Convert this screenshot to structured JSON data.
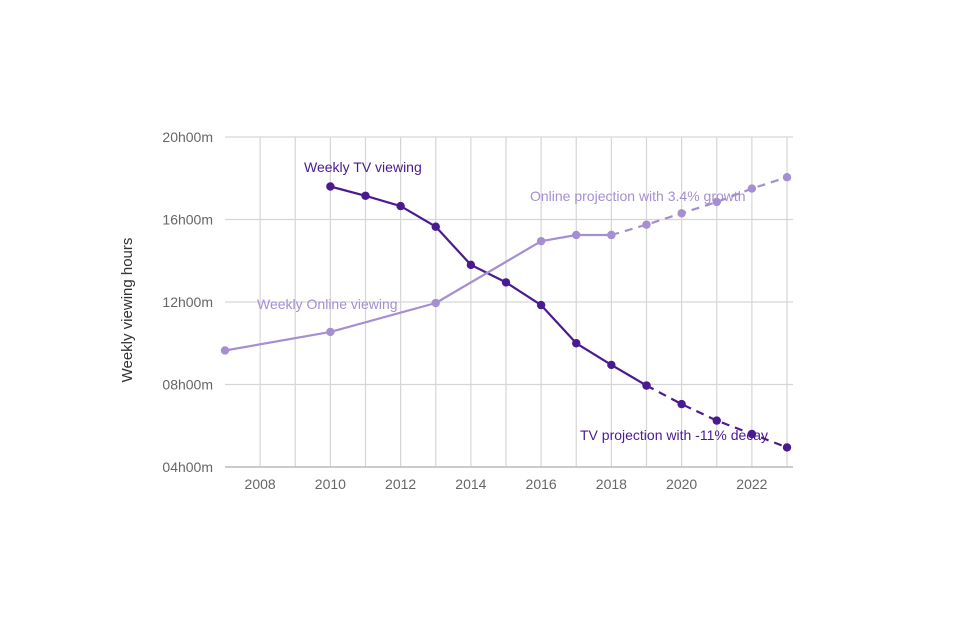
{
  "chart_data": {
    "type": "line",
    "title": "",
    "xlabel": "",
    "ylabel": "Weekly viewing hours",
    "xlim": [
      2007,
      2023
    ],
    "ylim": [
      4,
      20
    ],
    "grid": true,
    "x_ticks": [
      2008,
      2010,
      2012,
      2014,
      2016,
      2018,
      2020,
      2022
    ],
    "x_tick_labels": [
      "2008",
      "2010",
      "2012",
      "2014",
      "2016",
      "2018",
      "2020",
      "2022"
    ],
    "y_ticks": [
      4,
      8,
      12,
      16,
      20
    ],
    "y_tick_labels": [
      "04h00m",
      "08h00m",
      "12h00m",
      "16h00m",
      "20h00m"
    ],
    "series": [
      {
        "name": "Weekly TV viewing",
        "color": "#4a1a91",
        "style": "solid",
        "x": [
          2010,
          2011,
          2012,
          2013,
          2014,
          2015,
          2016,
          2017,
          2018,
          2019
        ],
        "values": [
          17.6,
          17.15,
          16.65,
          15.65,
          13.8,
          12.95,
          11.85,
          10.0,
          8.95,
          7.95
        ]
      },
      {
        "name": "TV projection with -11% decay",
        "color": "#4a1a91",
        "style": "dashed",
        "x": [
          2019,
          2020,
          2021,
          2022,
          2023
        ],
        "values": [
          7.95,
          7.05,
          6.25,
          5.6,
          4.95
        ]
      },
      {
        "name": "Weekly Online viewing",
        "color": "#a58fd0",
        "style": "solid",
        "x": [
          2007,
          2010,
          2013,
          2016,
          2017,
          2018
        ],
        "values": [
          9.65,
          10.55,
          11.95,
          14.95,
          15.25,
          15.25
        ]
      },
      {
        "name": "Online projection with 3.4% growth",
        "color": "#a58fd0",
        "style": "dashed",
        "x": [
          2018,
          2019,
          2020,
          2021,
          2022,
          2023
        ],
        "values": [
          15.25,
          15.75,
          16.3,
          16.85,
          17.5,
          18.05
        ]
      }
    ],
    "annotations": [
      {
        "text": "Weekly TV viewing",
        "series": "Weekly TV viewing"
      },
      {
        "text": "Weekly Online viewing",
        "series": "Weekly Online viewing"
      },
      {
        "text": "Online projection with 3.4% growth",
        "series": "Online projection with 3.4% growth"
      },
      {
        "text": "TV projection with -11% decay",
        "series": "TV projection with -11% decay"
      }
    ]
  }
}
